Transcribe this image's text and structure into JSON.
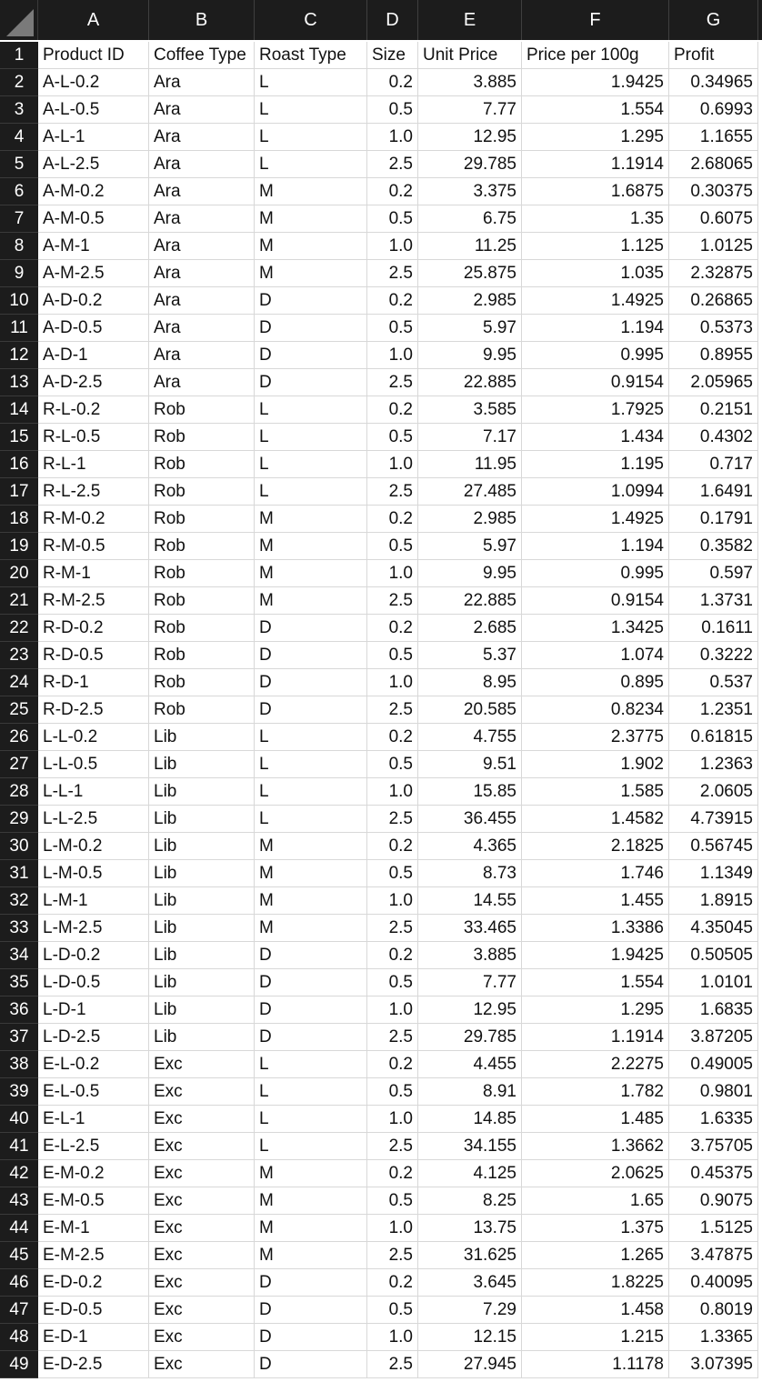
{
  "columns": [
    "A",
    "B",
    "C",
    "D",
    "E",
    "F",
    "G"
  ],
  "header": [
    "Product ID",
    "Coffee Type",
    "Roast Type",
    "Size",
    "Unit Price",
    "Price per 100g",
    "Profit"
  ],
  "rows": [
    [
      "A-L-0.2",
      "Ara",
      "L",
      "0.2",
      "3.885",
      "1.9425",
      "0.34965"
    ],
    [
      "A-L-0.5",
      "Ara",
      "L",
      "0.5",
      "7.77",
      "1.554",
      "0.6993"
    ],
    [
      "A-L-1",
      "Ara",
      "L",
      "1.0",
      "12.95",
      "1.295",
      "1.1655"
    ],
    [
      "A-L-2.5",
      "Ara",
      "L",
      "2.5",
      "29.785",
      "1.1914",
      "2.68065"
    ],
    [
      "A-M-0.2",
      "Ara",
      "M",
      "0.2",
      "3.375",
      "1.6875",
      "0.30375"
    ],
    [
      "A-M-0.5",
      "Ara",
      "M",
      "0.5",
      "6.75",
      "1.35",
      "0.6075"
    ],
    [
      "A-M-1",
      "Ara",
      "M",
      "1.0",
      "11.25",
      "1.125",
      "1.0125"
    ],
    [
      "A-M-2.5",
      "Ara",
      "M",
      "2.5",
      "25.875",
      "1.035",
      "2.32875"
    ],
    [
      "A-D-0.2",
      "Ara",
      "D",
      "0.2",
      "2.985",
      "1.4925",
      "0.26865"
    ],
    [
      "A-D-0.5",
      "Ara",
      "D",
      "0.5",
      "5.97",
      "1.194",
      "0.5373"
    ],
    [
      "A-D-1",
      "Ara",
      "D",
      "1.0",
      "9.95",
      "0.995",
      "0.8955"
    ],
    [
      "A-D-2.5",
      "Ara",
      "D",
      "2.5",
      "22.885",
      "0.9154",
      "2.05965"
    ],
    [
      "R-L-0.2",
      "Rob",
      "L",
      "0.2",
      "3.585",
      "1.7925",
      "0.2151"
    ],
    [
      "R-L-0.5",
      "Rob",
      "L",
      "0.5",
      "7.17",
      "1.434",
      "0.4302"
    ],
    [
      "R-L-1",
      "Rob",
      "L",
      "1.0",
      "11.95",
      "1.195",
      "0.717"
    ],
    [
      "R-L-2.5",
      "Rob",
      "L",
      "2.5",
      "27.485",
      "1.0994",
      "1.6491"
    ],
    [
      "R-M-0.2",
      "Rob",
      "M",
      "0.2",
      "2.985",
      "1.4925",
      "0.1791"
    ],
    [
      "R-M-0.5",
      "Rob",
      "M",
      "0.5",
      "5.97",
      "1.194",
      "0.3582"
    ],
    [
      "R-M-1",
      "Rob",
      "M",
      "1.0",
      "9.95",
      "0.995",
      "0.597"
    ],
    [
      "R-M-2.5",
      "Rob",
      "M",
      "2.5",
      "22.885",
      "0.9154",
      "1.3731"
    ],
    [
      "R-D-0.2",
      "Rob",
      "D",
      "0.2",
      "2.685",
      "1.3425",
      "0.1611"
    ],
    [
      "R-D-0.5",
      "Rob",
      "D",
      "0.5",
      "5.37",
      "1.074",
      "0.3222"
    ],
    [
      "R-D-1",
      "Rob",
      "D",
      "1.0",
      "8.95",
      "0.895",
      "0.537"
    ],
    [
      "R-D-2.5",
      "Rob",
      "D",
      "2.5",
      "20.585",
      "0.8234",
      "1.2351"
    ],
    [
      "L-L-0.2",
      "Lib",
      "L",
      "0.2",
      "4.755",
      "2.3775",
      "0.61815"
    ],
    [
      "L-L-0.5",
      "Lib",
      "L",
      "0.5",
      "9.51",
      "1.902",
      "1.2363"
    ],
    [
      "L-L-1",
      "Lib",
      "L",
      "1.0",
      "15.85",
      "1.585",
      "2.0605"
    ],
    [
      "L-L-2.5",
      "Lib",
      "L",
      "2.5",
      "36.455",
      "1.4582",
      "4.73915"
    ],
    [
      "L-M-0.2",
      "Lib",
      "M",
      "0.2",
      "4.365",
      "2.1825",
      "0.56745"
    ],
    [
      "L-M-0.5",
      "Lib",
      "M",
      "0.5",
      "8.73",
      "1.746",
      "1.1349"
    ],
    [
      "L-M-1",
      "Lib",
      "M",
      "1.0",
      "14.55",
      "1.455",
      "1.8915"
    ],
    [
      "L-M-2.5",
      "Lib",
      "M",
      "2.5",
      "33.465",
      "1.3386",
      "4.35045"
    ],
    [
      "L-D-0.2",
      "Lib",
      "D",
      "0.2",
      "3.885",
      "1.9425",
      "0.50505"
    ],
    [
      "L-D-0.5",
      "Lib",
      "D",
      "0.5",
      "7.77",
      "1.554",
      "1.0101"
    ],
    [
      "L-D-1",
      "Lib",
      "D",
      "1.0",
      "12.95",
      "1.295",
      "1.6835"
    ],
    [
      "L-D-2.5",
      "Lib",
      "D",
      "2.5",
      "29.785",
      "1.1914",
      "3.87205"
    ],
    [
      "E-L-0.2",
      "Exc",
      "L",
      "0.2",
      "4.455",
      "2.2275",
      "0.49005"
    ],
    [
      "E-L-0.5",
      "Exc",
      "L",
      "0.5",
      "8.91",
      "1.782",
      "0.9801"
    ],
    [
      "E-L-1",
      "Exc",
      "L",
      "1.0",
      "14.85",
      "1.485",
      "1.6335"
    ],
    [
      "E-L-2.5",
      "Exc",
      "L",
      "2.5",
      "34.155",
      "1.3662",
      "3.75705"
    ],
    [
      "E-M-0.2",
      "Exc",
      "M",
      "0.2",
      "4.125",
      "2.0625",
      "0.45375"
    ],
    [
      "E-M-0.5",
      "Exc",
      "M",
      "0.5",
      "8.25",
      "1.65",
      "0.9075"
    ],
    [
      "E-M-1",
      "Exc",
      "M",
      "1.0",
      "13.75",
      "1.375",
      "1.5125"
    ],
    [
      "E-M-2.5",
      "Exc",
      "M",
      "2.5",
      "31.625",
      "1.265",
      "3.47875"
    ],
    [
      "E-D-0.2",
      "Exc",
      "D",
      "0.2",
      "3.645",
      "1.8225",
      "0.40095"
    ],
    [
      "E-D-0.5",
      "Exc",
      "D",
      "0.5",
      "7.29",
      "1.458",
      "0.8019"
    ],
    [
      "E-D-1",
      "Exc",
      "D",
      "1.0",
      "12.15",
      "1.215",
      "1.3365"
    ],
    [
      "E-D-2.5",
      "Exc",
      "D",
      "2.5",
      "27.945",
      "1.1178",
      "3.07395"
    ]
  ]
}
